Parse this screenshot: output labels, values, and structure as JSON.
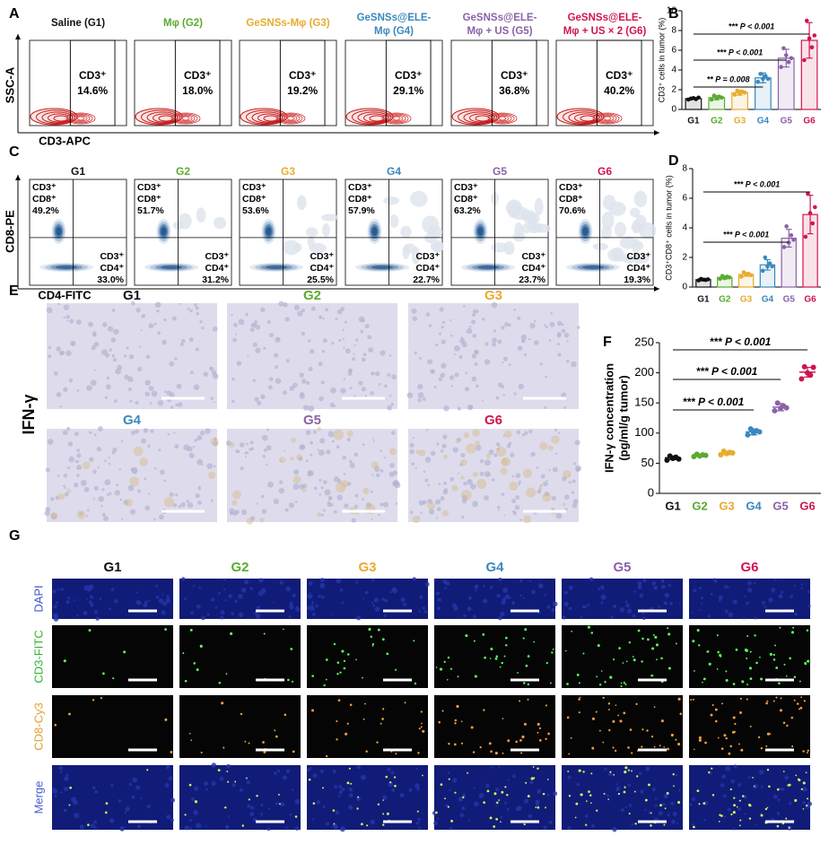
{
  "panels": [
    "A",
    "B",
    "C",
    "D",
    "E",
    "F",
    "G"
  ],
  "group_colors": [
    "#111111",
    "#5aab2e",
    "#e8ab2e",
    "#3a88bd",
    "#8a62a8",
    "#d0154d"
  ],
  "flow_cd3": {
    "groups": [
      [
        "Saline (G1)"
      ],
      [
        "Mφ (G2)"
      ],
      [
        "GeSNSs-Mφ (G3)"
      ],
      [
        "GeSNSs@ELE-",
        "Mφ (G4)"
      ],
      [
        "GeSNSs@ELE-",
        "Mφ + US (G5)"
      ],
      [
        "GeSNSs@ELE-",
        "Mφ + US × 2 (G6)"
      ]
    ],
    "gate_label": "CD3⁺",
    "percentages": [
      "14.6%",
      "18.0%",
      "19.2%",
      "29.1%",
      "36.8%",
      "40.2%"
    ],
    "y_label": "SSC-A",
    "x_label": "CD3-APC"
  },
  "flow_cd8": {
    "groups": [
      "G1",
      "G2",
      "G3",
      "G4",
      "G5",
      "G6"
    ],
    "cd8_label": [
      "CD3⁺",
      "CD8⁺"
    ],
    "cd8_percentages": [
      "49.2%",
      "51.7%",
      "53.6%",
      "57.9%",
      "63.2%",
      "70.6%"
    ],
    "cd4_label": [
      "CD3⁺",
      "CD4⁺"
    ],
    "cd4_percentages": [
      "33.0%",
      "31.2%",
      "25.5%",
      "22.7%",
      "23.7%",
      "19.3%"
    ],
    "y_label": "CD8-PE",
    "x_label": "CD4-FITC"
  },
  "ihc": {
    "groups": [
      "G1",
      "G2",
      "G3",
      "G4",
      "G5",
      "G6"
    ],
    "stain_label": "IFN-γ"
  },
  "immunofluorescence": {
    "groups": [
      "G1",
      "G2",
      "G3",
      "G4",
      "G5",
      "G6"
    ],
    "rows": [
      "DAPI",
      "CD3-FITC",
      "CD8-Cy3",
      "Merge"
    ]
  },
  "chart_data": [
    {
      "type": "bar",
      "y_label": [
        "CD3⁺ cells in tumor (%)"
      ],
      "categories": [
        "G1",
        "G2",
        "G3",
        "G4",
        "G5",
        "G6"
      ],
      "values": [
        1.1,
        1.2,
        1.7,
        3.2,
        5.2,
        7.0
      ],
      "errors": [
        0.1,
        0.2,
        0.25,
        0.5,
        0.9,
        1.8
      ],
      "points": [
        [
          1.0,
          1.1,
          1.15,
          1.05,
          1.2
        ],
        [
          1.0,
          1.4,
          1.1,
          1.3,
          1.2
        ],
        [
          1.5,
          1.9,
          1.6,
          1.8,
          1.7
        ],
        [
          2.8,
          3.6,
          3.1,
          3.4,
          3.1
        ],
        [
          4.3,
          6.2,
          5.5,
          4.8,
          5.2
        ],
        [
          5.0,
          9.0,
          7.2,
          6.3,
          7.5
        ]
      ],
      "ylim": [
        0,
        10
      ],
      "yticks": [
        0,
        2,
        4,
        6,
        8,
        10
      ],
      "annotations": [
        "** P = 0.008",
        "*** P < 0.001",
        "*** P < 0.001"
      ]
    },
    {
      "type": "bar",
      "y_label": [
        "CD3⁺CD8⁺ cells in tumor (%)"
      ],
      "categories": [
        "G1",
        "G2",
        "G3",
        "G4",
        "G5",
        "G6"
      ],
      "values": [
        0.5,
        0.65,
        0.85,
        1.5,
        3.3,
        4.9
      ],
      "errors": [
        0.08,
        0.1,
        0.12,
        0.35,
        0.6,
        1.3
      ],
      "points": [
        [
          0.45,
          0.55,
          0.5,
          0.48,
          0.52
        ],
        [
          0.55,
          0.75,
          0.6,
          0.7,
          0.65
        ],
        [
          0.7,
          1.0,
          0.85,
          0.9,
          0.8
        ],
        [
          1.1,
          2.0,
          1.4,
          1.6,
          1.4
        ],
        [
          2.7,
          4.1,
          3.0,
          3.5,
          3.2
        ],
        [
          3.4,
          6.3,
          5.0,
          4.3,
          5.4
        ]
      ],
      "ylim": [
        0,
        8
      ],
      "yticks": [
        0,
        2,
        4,
        6,
        8
      ],
      "annotations": [
        "*** P < 0.001",
        "*** P < 0.001"
      ]
    },
    {
      "type": "scatter",
      "y_label": [
        "IFN-γ concentration",
        "(pg/ml/g tumor)"
      ],
      "categories": [
        "G1",
        "G2",
        "G3",
        "G4",
        "G5",
        "G6"
      ],
      "values": [
        59,
        63,
        67,
        102,
        143,
        201
      ],
      "errors": [
        3,
        2,
        3,
        5,
        6,
        8
      ],
      "points": [
        [
          55,
          62,
          58,
          60,
          57
        ],
        [
          61,
          65,
          62,
          64,
          63
        ],
        [
          64,
          70,
          66,
          68,
          67
        ],
        [
          97,
          107,
          100,
          104,
          102
        ],
        [
          137,
          150,
          141,
          145,
          142
        ],
        [
          190,
          210,
          200,
          196,
          209
        ]
      ],
      "ylim": [
        0,
        250
      ],
      "yticks": [
        0,
        50,
        100,
        150,
        200,
        250
      ],
      "annotations": [
        "*** P < 0.001",
        "*** P < 0.001",
        "*** P < 0.001"
      ]
    }
  ]
}
